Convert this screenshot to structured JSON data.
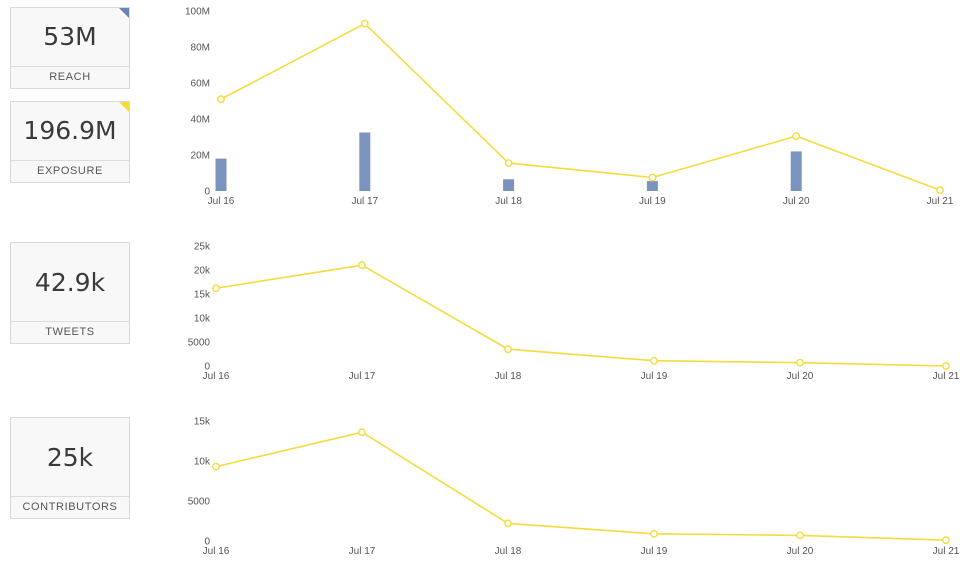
{
  "cards": [
    {
      "value": "53M",
      "label": "REACH",
      "corner": "#6c84b0"
    },
    {
      "value": "196.9M",
      "label": "EXPOSURE",
      "corner": "#f5dc3a"
    },
    {
      "value": "42.9k",
      "label": "TWEETS"
    },
    {
      "value": "25k",
      "label": "CONTRIBUTORS"
    }
  ],
  "colors": {
    "line": "#f5dc3a",
    "bar": "#7b93bd"
  },
  "chart_data": [
    {
      "type": "bar+line",
      "categories": [
        "Jul 16",
        "Jul 17",
        "Jul 18",
        "Jul 19",
        "Jul 20",
        "Jul 21"
      ],
      "ylim": [
        0,
        100000000
      ],
      "yticks": [
        "0",
        "20M",
        "40M",
        "60M",
        "80M",
        "100M"
      ],
      "ytick_values": [
        0,
        20000000,
        40000000,
        60000000,
        80000000,
        100000000
      ],
      "series": [
        {
          "kind": "bar",
          "values": [
            18000000,
            32500000,
            6500000,
            5500000,
            22000000,
            0
          ]
        },
        {
          "kind": "line",
          "values": [
            51000000,
            93000000,
            15500000,
            7500000,
            30500000,
            500000
          ]
        }
      ]
    },
    {
      "type": "line",
      "categories": [
        "Jul 16",
        "Jul 17",
        "Jul 18",
        "Jul 19",
        "Jul 20",
        "Jul 21"
      ],
      "ylim": [
        0,
        25000
      ],
      "yticks": [
        "0",
        "5000",
        "10k",
        "15k",
        "20k",
        "25k"
      ],
      "ytick_values": [
        0,
        5000,
        10000,
        15000,
        20000,
        25000
      ],
      "series": [
        {
          "kind": "line",
          "values": [
            16200,
            21000,
            3500,
            1100,
            700,
            0
          ]
        }
      ]
    },
    {
      "type": "line",
      "categories": [
        "Jul 16",
        "Jul 17",
        "Jul 18",
        "Jul 19",
        "Jul 20",
        "Jul 21"
      ],
      "ylim": [
        0,
        15000
      ],
      "yticks": [
        "0",
        "5000",
        "10k",
        "15k"
      ],
      "ytick_values": [
        0,
        5000,
        10000,
        15000
      ],
      "series": [
        {
          "kind": "line",
          "values": [
            9300,
            13600,
            2200,
            900,
            700,
            100
          ]
        }
      ]
    }
  ]
}
